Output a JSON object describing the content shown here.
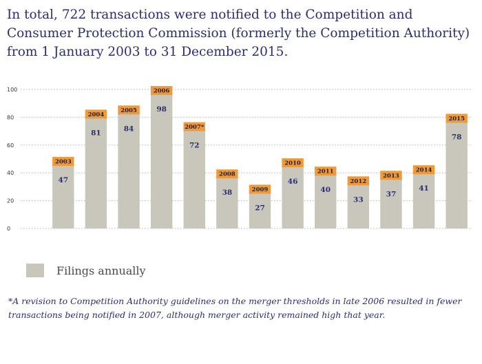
{
  "headline": "In total, 722 transactions were notified to the Competition and Consumer Protection Commission (formerly the Competition Authority) from 1 January 2003 to 31 December 2015.",
  "legend": {
    "label": "Filings annually"
  },
  "footnote": "*A revision to Competition Authority guidelines on the merger thresholds in late 2006 resulted in fewer transactions being notified in 2007, although merger activity remained high that year.",
  "colors": {
    "bar": "#c9c7bc",
    "label_band": "#ef9a3a",
    "title_text": "#2b2d6e",
    "value_text": "#2b2d6e",
    "axis_text": "#333333",
    "grid": "#b5b5b5"
  },
  "chart_data": {
    "type": "bar",
    "title": "",
    "xlabel": "",
    "ylabel": "",
    "ylim": [
      0,
      100
    ],
    "yticks": [
      0,
      20,
      40,
      60,
      80,
      100
    ],
    "grid": true,
    "categories": [
      "2003",
      "2004",
      "2005",
      "2006",
      "2007*",
      "2008",
      "2009",
      "2010",
      "2011",
      "2012",
      "2013",
      "2014",
      "2015"
    ],
    "series": [
      {
        "name": "Filings annually",
        "values": [
          47,
          81,
          84,
          98,
          72,
          38,
          27,
          46,
          40,
          33,
          37,
          41,
          78
        ]
      }
    ]
  }
}
